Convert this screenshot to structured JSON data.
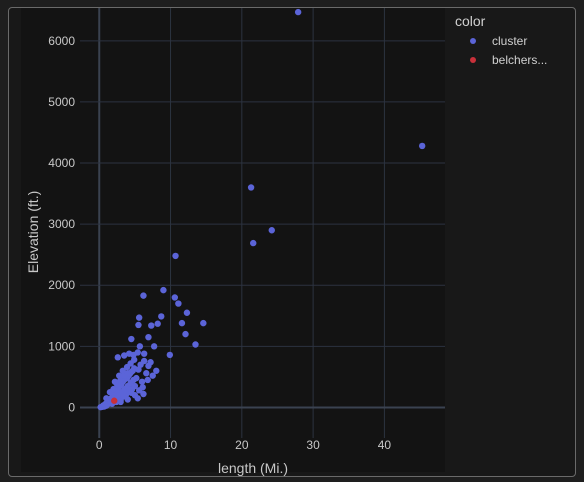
{
  "chart_data": {
    "type": "scatter",
    "xlabel": "length (Mi.)",
    "ylabel": "Elevation (ft.)",
    "xlim": [
      -2.7,
      48.5
    ],
    "ylim": [
      -500,
      6570
    ],
    "xticks": [
      0,
      10,
      20,
      30,
      40
    ],
    "yticks": [
      0,
      1000,
      2000,
      3000,
      4000,
      5000,
      6000
    ],
    "grid": true,
    "legend": {
      "title": "color",
      "placement": "right"
    },
    "series": [
      {
        "name": "cluster",
        "color": "#5b64d8",
        "points": [
          [
            0.2,
            5
          ],
          [
            0.4,
            10
          ],
          [
            0.5,
            20
          ],
          [
            0.6,
            35
          ],
          [
            0.7,
            15
          ],
          [
            0.8,
            40
          ],
          [
            0.9,
            60
          ],
          [
            1.0,
            30
          ],
          [
            1.1,
            80
          ],
          [
            1.2,
            55
          ],
          [
            1.3,
            100
          ],
          [
            1.4,
            70
          ],
          [
            1.5,
            120
          ],
          [
            1.6,
            90
          ],
          [
            1.7,
            150
          ],
          [
            1.8,
            60
          ],
          [
            1.9,
            180
          ],
          [
            2.0,
            110
          ],
          [
            2.1,
            200
          ],
          [
            2.2,
            140
          ],
          [
            2.3,
            240
          ],
          [
            2.4,
            90
          ],
          [
            2.5,
            270
          ],
          [
            2.6,
            160
          ],
          [
            2.7,
            300
          ],
          [
            2.8,
            200
          ],
          [
            2.9,
            350
          ],
          [
            3.0,
            120
          ],
          [
            3.1,
            380
          ],
          [
            3.2,
            250
          ],
          [
            3.3,
            420
          ],
          [
            3.4,
            180
          ],
          [
            3.5,
            450
          ],
          [
            3.6,
            300
          ],
          [
            3.7,
            500
          ],
          [
            3.8,
            220
          ],
          [
            3.9,
            480
          ],
          [
            4.0,
            350
          ],
          [
            4.1,
            520
          ],
          [
            4.2,
            260
          ],
          [
            4.3,
            550
          ],
          [
            4.4,
            400
          ],
          [
            4.5,
            580
          ],
          [
            4.6,
            300
          ],
          [
            4.7,
            600
          ],
          [
            4.8,
            450
          ],
          [
            4.9,
            640
          ],
          [
            5.0,
            350
          ],
          [
            1.0,
            150
          ],
          [
            1.5,
            250
          ],
          [
            2.0,
            300
          ],
          [
            2.5,
            380
          ],
          [
            3.0,
            450
          ],
          [
            3.5,
            520
          ],
          [
            4.0,
            560
          ],
          [
            5.2,
            480
          ],
          [
            5.5,
            620
          ],
          [
            5.8,
            700
          ],
          [
            6.0,
            420
          ],
          [
            6.3,
            760
          ],
          [
            6.6,
            560
          ],
          [
            6.9,
            680
          ],
          [
            7.2,
            740
          ],
          [
            4.5,
            240
          ],
          [
            2.2,
            420
          ],
          [
            2.8,
            520
          ],
          [
            3.3,
            600
          ],
          [
            3.9,
            660
          ],
          [
            4.4,
            720
          ],
          [
            4.9,
            780
          ],
          [
            3.0,
            90
          ],
          [
            4.0,
            130
          ],
          [
            5.0,
            200
          ],
          [
            5.6,
            280
          ],
          [
            6.1,
            330
          ],
          [
            6.8,
            450
          ],
          [
            7.5,
            520
          ],
          [
            8.0,
            600
          ],
          [
            6.2,
            220
          ],
          [
            5.4,
            150
          ],
          [
            2.6,
            820
          ],
          [
            3.5,
            850
          ],
          [
            4.2,
            880
          ],
          [
            4.8,
            860
          ],
          [
            5.4,
            900
          ],
          [
            6.3,
            880
          ],
          [
            6.9,
            1150
          ],
          [
            5.7,
            1000
          ],
          [
            4.5,
            1120
          ],
          [
            7.3,
            1340
          ],
          [
            8.2,
            1370
          ],
          [
            5.5,
            1350
          ],
          [
            5.6,
            1470
          ],
          [
            6.2,
            1830
          ],
          [
            9.0,
            1920
          ],
          [
            8.7,
            1490
          ],
          [
            7.7,
            1000
          ],
          [
            9.9,
            860
          ],
          [
            10.6,
            1800
          ],
          [
            11.1,
            1700
          ],
          [
            11.6,
            1380
          ],
          [
            12.1,
            1200
          ],
          [
            12.3,
            1550
          ],
          [
            13.5,
            1030
          ],
          [
            14.6,
            1380
          ],
          [
            10.7,
            2480
          ],
          [
            21.3,
            3600
          ],
          [
            21.6,
            2690
          ],
          [
            24.2,
            2900
          ],
          [
            27.9,
            6470
          ],
          [
            45.3,
            4280
          ]
        ]
      },
      {
        "name": "belchers...",
        "color": "#c8303a",
        "points": [
          [
            2.1,
            110
          ]
        ]
      }
    ]
  }
}
